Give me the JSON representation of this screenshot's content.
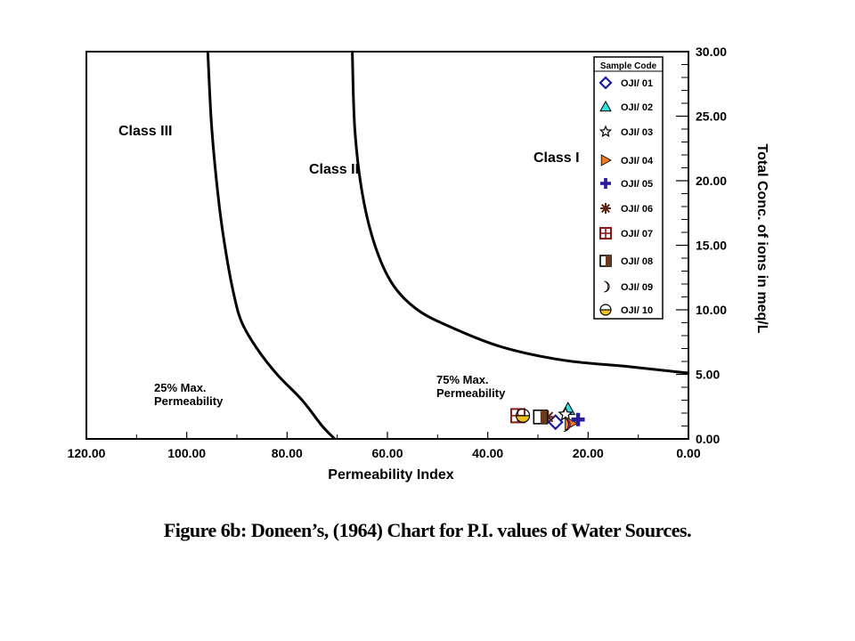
{
  "caption": "Figure 6b: Doneen’s, (1964) Chart for P.I. values of Water Sources.",
  "chart_data": {
    "type": "scatter",
    "title": "",
    "xlabel": "Permeability Index",
    "ylabel": "Total Conc. of ions in meq/L",
    "x_axis": {
      "reversed": true,
      "range": [
        0,
        120
      ],
      "ticks": [
        120,
        100,
        80,
        60,
        40,
        20,
        0
      ],
      "tick_labels": [
        "120.00",
        "100.00",
        "80.00",
        "60.00",
        "40.00",
        "20.00",
        "0.00"
      ]
    },
    "y_axis": {
      "position": "right",
      "range": [
        0,
        30
      ],
      "ticks": [
        0,
        5,
        10,
        15,
        20,
        25,
        30
      ],
      "tick_labels": [
        "0.00",
        "5.00",
        "10.00",
        "15.00",
        "20.00",
        "25.00",
        "30.00"
      ]
    },
    "grid": false,
    "legend": {
      "title": "Sample Code",
      "placement": "top-right"
    },
    "region_labels": [
      "Class III",
      "Class II",
      "Class I"
    ],
    "annotations": [
      "25% Max.\nPermeability",
      "75% Max.\nPermeability"
    ],
    "boundary_curves": [
      {
        "name": "",
        "points": [
          [
            95.8,
            30
          ],
          [
            95,
            24
          ],
          [
            93.5,
            18
          ],
          [
            92,
            14
          ],
          [
            90.5,
            11
          ],
          [
            89,
            9
          ],
          [
            86,
            7
          ],
          [
            82,
            5
          ],
          [
            77,
            3
          ],
          [
            73,
            1
          ],
          [
            70.5,
            0
          ]
        ]
      },
      {
        "name": "",
        "points": [
          [
            67,
            30
          ],
          [
            66.5,
            24
          ],
          [
            65,
            19
          ],
          [
            62.5,
            15
          ],
          [
            59,
            12
          ],
          [
            54,
            10
          ],
          [
            47,
            8.6
          ],
          [
            37,
            7.1
          ],
          [
            25,
            6.1
          ],
          [
            12,
            5.6
          ],
          [
            0,
            5.1
          ]
        ]
      }
    ],
    "series": [
      {
        "name": "OJI/ 01",
        "marker": "diamond",
        "color": "#1a1aa6",
        "x": 26.5,
        "y": 1.3
      },
      {
        "name": "OJI/ 02",
        "marker": "triangle",
        "color": "#33e0e0",
        "x": 24.0,
        "y": 2.3
      },
      {
        "name": "OJI/ 03",
        "marker": "star",
        "color": "#000000",
        "x": 24.5,
        "y": 1.9
      },
      {
        "name": "OJI/ 04",
        "marker": "triangle-right",
        "color": "#f07a22",
        "x": 23.5,
        "y": 1.2
      },
      {
        "name": "OJI/ 05",
        "marker": "cross",
        "color": "#2a1a9e",
        "x": 22.0,
        "y": 1.5
      },
      {
        "name": "OJI/ 06",
        "marker": "asterisk",
        "color": "#5a2410",
        "x": 28.0,
        "y": 1.7
      },
      {
        "name": "OJI/ 07",
        "marker": "square-grid",
        "color": "#8a1a1a",
        "x": 34.0,
        "y": 1.8
      },
      {
        "name": "OJI/ 08",
        "marker": "square-half",
        "color": "#6b3a1a",
        "x": 29.5,
        "y": 1.7
      },
      {
        "name": "OJI/ 09",
        "marker": "crescent",
        "color": "#e030d0",
        "x": 24.5,
        "y": 1.1
      },
      {
        "name": "OJI/ 10",
        "marker": "circle-half",
        "color": "#f0c020",
        "x": 33.0,
        "y": 1.8
      }
    ]
  }
}
